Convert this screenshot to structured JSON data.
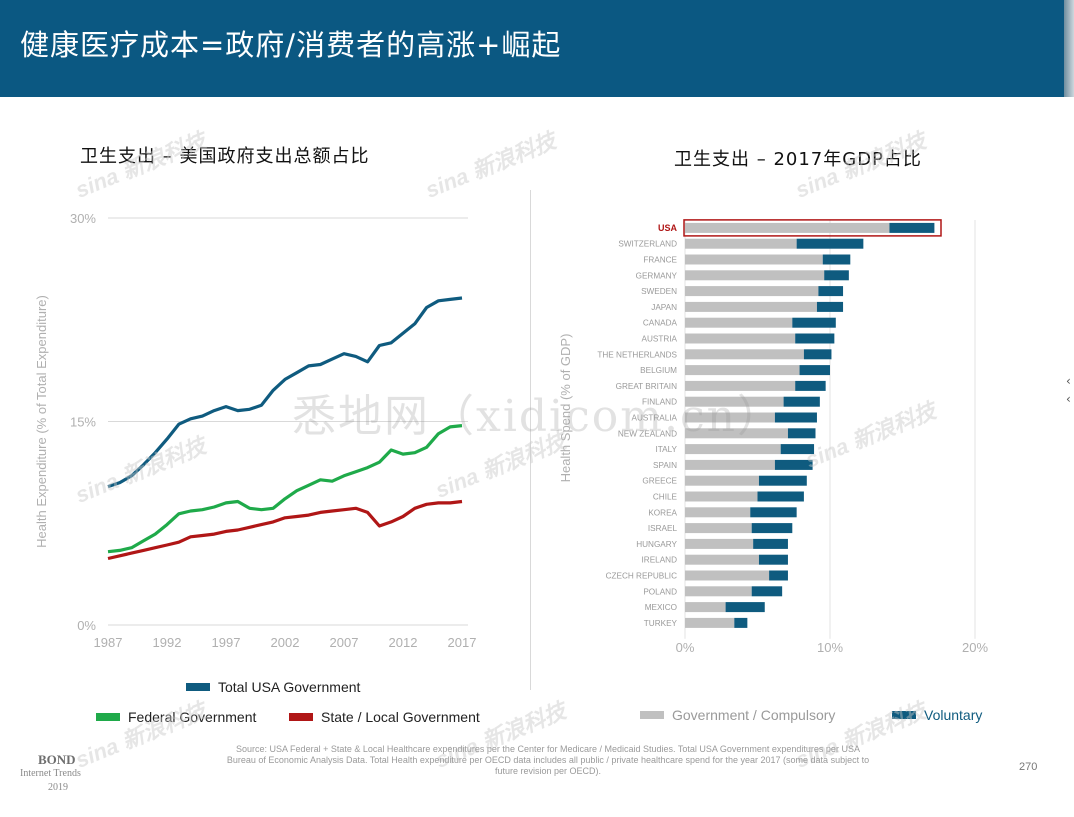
{
  "slide": {
    "title": "健康医疗成本=政府/消费者的高涨+崛起",
    "page_number": "270",
    "source": "Source: USA Federal + State & Local Healthcare expenditures per the Center for Medicare / Medicaid Studies.  Total USA Government expenditures per USA Bureau of Economic Analysis Data.  Total Health expenditure per OECD data includes all public / private healthcare spend for the year 2017 (some data subject to future revision per OECD).",
    "brand": {
      "name": "BOND",
      "line2": "Internet Trends",
      "line3": "2019"
    },
    "watermark": "悉地网（xidicom.cn）",
    "sina_watermark": "sina 新浪科技"
  },
  "colors": {
    "header_bg": "#0b5882",
    "total_gov": "#0f5b7f",
    "federal": "#1faa4a",
    "state_local": "#b01616",
    "compulsory": "#c0c0c0",
    "voluntary": "#0f5b7f",
    "usa_highlight": "#b01616"
  },
  "chart_data": [
    {
      "type": "line",
      "title": "卫生支出 – 美国政府支出总额占比",
      "ylabel": "Health Expenditure (% of Total Expenditure)",
      "xlabel": "",
      "ylim": [
        0,
        30
      ],
      "xlim": [
        1987,
        2017
      ],
      "yticks": [
        "0%",
        "15%",
        "30%"
      ],
      "xticks": [
        "1987",
        "1992",
        "1997",
        "2002",
        "2007",
        "2012",
        "2017"
      ],
      "x": [
        1987,
        1988,
        1989,
        1990,
        1991,
        1992,
        1993,
        1994,
        1995,
        1996,
        1997,
        1998,
        1999,
        2000,
        2001,
        2002,
        2003,
        2004,
        2005,
        2006,
        2007,
        2008,
        2009,
        2010,
        2011,
        2012,
        2013,
        2014,
        2015,
        2016,
        2017
      ],
      "series": [
        {
          "name": "Total USA Government",
          "color": "#0f5b7f",
          "values": [
            10.2,
            10.5,
            11.0,
            11.8,
            12.7,
            13.7,
            14.8,
            15.2,
            15.4,
            15.8,
            16.1,
            15.8,
            15.9,
            16.2,
            17.3,
            18.1,
            18.6,
            19.1,
            19.2,
            19.6,
            20.0,
            19.8,
            19.4,
            20.6,
            20.8,
            21.5,
            22.2,
            23.4,
            23.9,
            24.0,
            24.1
          ]
        },
        {
          "name": "Federal Government",
          "color": "#1faa4a",
          "values": [
            5.4,
            5.5,
            5.7,
            6.2,
            6.7,
            7.4,
            8.2,
            8.4,
            8.5,
            8.7,
            9.0,
            9.1,
            8.6,
            8.5,
            8.6,
            9.3,
            9.9,
            10.3,
            10.7,
            10.6,
            11.0,
            11.3,
            11.6,
            12.0,
            12.9,
            12.6,
            12.7,
            13.1,
            14.1,
            14.6,
            14.7
          ]
        },
        {
          "name": "State / Local Government",
          "color": "#b01616",
          "values": [
            4.9,
            5.1,
            5.3,
            5.5,
            5.7,
            5.9,
            6.1,
            6.5,
            6.6,
            6.7,
            6.9,
            7.0,
            7.2,
            7.4,
            7.6,
            7.9,
            8.0,
            8.1,
            8.3,
            8.4,
            8.5,
            8.6,
            8.3,
            7.3,
            7.6,
            8.0,
            8.6,
            8.9,
            9.0,
            9.0,
            9.1
          ]
        }
      ],
      "legend": "bottom"
    },
    {
      "type": "bar",
      "orientation": "horizontal",
      "stacked": true,
      "title": "卫生支出 – 2017年GDP占比",
      "ylabel": "Health Spend (% of GDP)",
      "xlabel": "",
      "xlim": [
        0,
        20
      ],
      "xticks": [
        "0%",
        "10%",
        "20%"
      ],
      "highlight": "USA",
      "categories": [
        "USA",
        "SWITZERLAND",
        "FRANCE",
        "GERMANY",
        "SWEDEN",
        "JAPAN",
        "CANADA",
        "AUSTRIA",
        "THE NETHERLANDS",
        "BELGIUM",
        "GREAT BRITAIN",
        "FINLAND",
        "AUSTRALIA",
        "NEW ZEALAND",
        "ITALY",
        "SPAIN",
        "GREECE",
        "CHILE",
        "KOREA",
        "ISRAEL",
        "HUNGARY",
        "IRELAND",
        "CZECH REPUBLIC",
        "POLAND",
        "MEXICO",
        "TURKEY"
      ],
      "series": [
        {
          "name": "Government / Compulsory",
          "color": "#c0c0c0",
          "values": [
            14.1,
            7.7,
            9.5,
            9.6,
            9.2,
            9.1,
            7.4,
            7.6,
            8.2,
            7.9,
            7.6,
            6.8,
            6.2,
            7.1,
            6.6,
            6.2,
            5.1,
            5.0,
            4.5,
            4.6,
            4.7,
            5.1,
            5.8,
            4.6,
            2.8,
            3.4
          ]
        },
        {
          "name": "Voluntary",
          "color": "#0f5b7f",
          "values": [
            3.1,
            4.6,
            1.9,
            1.7,
            1.7,
            1.8,
            3.0,
            2.7,
            1.9,
            2.1,
            2.1,
            2.5,
            2.9,
            1.9,
            2.3,
            2.6,
            3.3,
            3.2,
            3.2,
            2.8,
            2.4,
            2.0,
            1.3,
            2.1,
            2.7,
            0.9
          ]
        }
      ],
      "legend": "bottom"
    }
  ]
}
